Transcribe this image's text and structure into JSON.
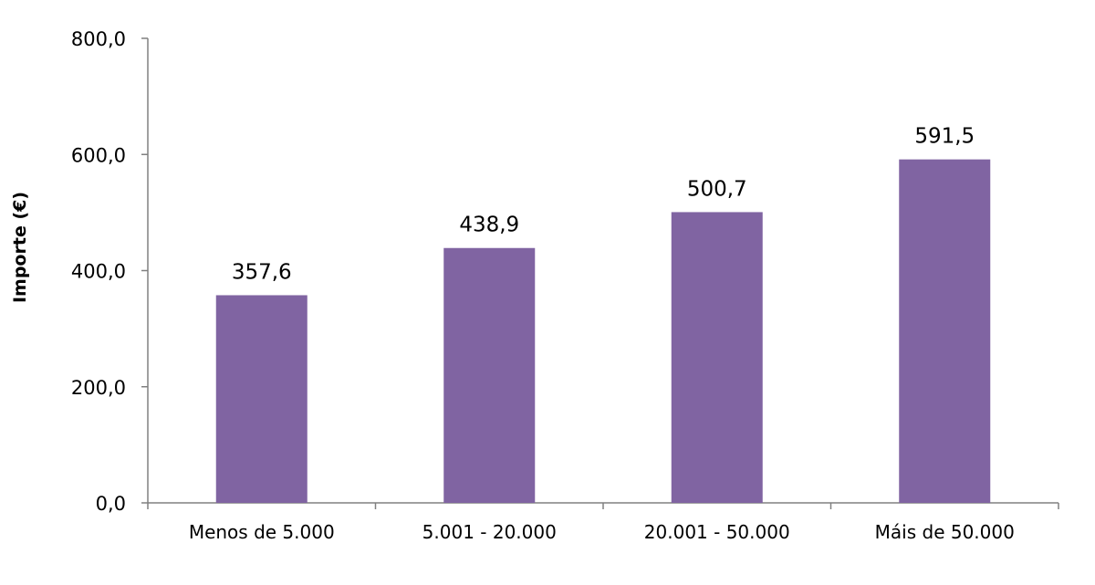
{
  "chart_data": {
    "type": "bar",
    "categories": [
      "Menos de 5.000",
      "5.001 - 20.000",
      "20.001 - 50.000",
      "Máis de 50.000"
    ],
    "values": [
      357.6,
      438.9,
      500.7,
      591.5
    ],
    "value_labels": [
      "357,6",
      "438,9",
      "500,7",
      "591,5"
    ],
    "ylabel": "Importe (€)",
    "ylim": [
      0,
      800
    ],
    "yticks": [
      0,
      200,
      400,
      600,
      800
    ],
    "ytick_labels": [
      "0,0",
      "200,0",
      "400,0",
      "600,0",
      "800,0"
    ],
    "grid": false,
    "legend": "none",
    "bar_color": "#8064A2",
    "axis_color": "#808080"
  }
}
